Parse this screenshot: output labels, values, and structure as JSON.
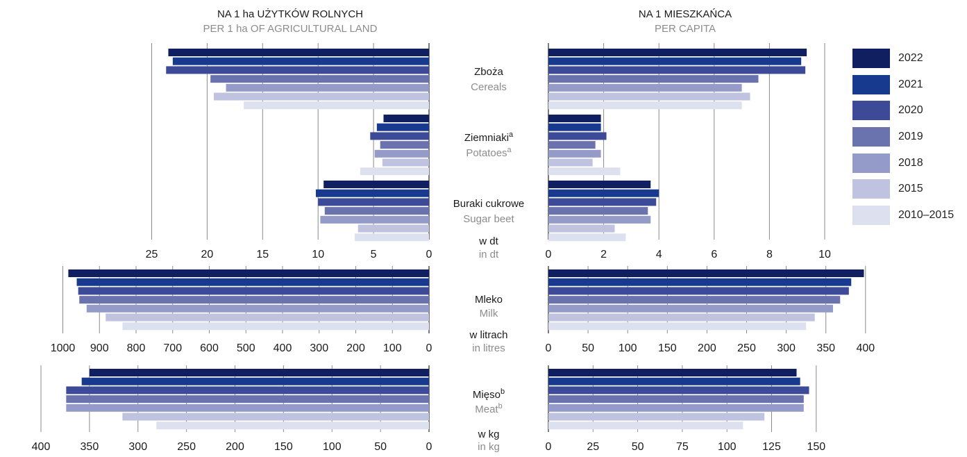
{
  "headers": {
    "left_pl": "NA 1 ha UŻYTKÓW ROLNYCH",
    "left_en": "PER 1 ha OF AGRICULTURAL LAND",
    "right_pl": "NA 1 MIESZKAŃCA",
    "right_en": "PER CAPITA"
  },
  "colors": {
    "pl_text": "#1a1a1a",
    "en_text": "#8c8c8c",
    "axis": "#333333",
    "grid": "#8a8a8a"
  },
  "legend": [
    {
      "label": "2022",
      "color": "#0f1f5f"
    },
    {
      "label": "2021",
      "color": "#173a8f"
    },
    {
      "label": "2020",
      "color": "#3d4a97"
    },
    {
      "label": "2019",
      "color": "#6a73ad"
    },
    {
      "label": "2018",
      "color": "#959bc8"
    },
    {
      "label": "2015",
      "color": "#c0c3df"
    },
    {
      "label": "2010–2015",
      "color": "#dde0ef"
    }
  ],
  "chart_data": [
    {
      "type": "bar",
      "orientation": "horizontal",
      "panel": "per 1 ha of agricultural land",
      "unit_pl": "w dt",
      "unit_en": "in dt",
      "xlim": [
        0,
        25
      ],
      "ticks": [
        25,
        20,
        15,
        10,
        5,
        0
      ],
      "series_labels": [
        "2022",
        "2021",
        "2020",
        "2019",
        "2018",
        "2015",
        "2010–2015"
      ],
      "categories": [
        {
          "pl": "Zboża",
          "en": "Cereals",
          "sup": "",
          "values": [
            23.5,
            23.1,
            23.7,
            19.7,
            18.3,
            19.4,
            16.7
          ]
        },
        {
          "pl": "Ziemniaki",
          "en": "Potatoes",
          "sup": "a",
          "values": [
            4.1,
            4.7,
            5.3,
            4.4,
            4.9,
            4.2,
            6.2
          ]
        },
        {
          "pl": "Buraki cukrowe",
          "en": "Sugar beet",
          "sup": "",
          "values": [
            9.5,
            10.2,
            10.0,
            9.4,
            9.8,
            6.4,
            6.7
          ]
        }
      ]
    },
    {
      "type": "bar",
      "orientation": "horizontal",
      "panel": "per capita",
      "unit_pl": "w dt",
      "unit_en": "in dt",
      "xlim": [
        0,
        10
      ],
      "ticks": [
        0,
        2,
        4,
        6,
        8,
        10
      ],
      "series_labels": [
        "2022",
        "2021",
        "2020",
        "2019",
        "2018",
        "2015",
        "2010–2015"
      ],
      "categories": [
        {
          "pl": "Zboża",
          "en": "Cereals",
          "sup": "",
          "values": [
            9.35,
            9.15,
            9.3,
            7.6,
            7.0,
            7.3,
            7.0
          ]
        },
        {
          "pl": "Ziemniaki",
          "en": "Potatoes",
          "sup": "a",
          "values": [
            1.9,
            1.9,
            2.1,
            1.7,
            1.9,
            1.6,
            2.6
          ]
        },
        {
          "pl": "Buraki cukrowe",
          "en": "Sugar beet",
          "sup": "",
          "values": [
            3.7,
            4.0,
            3.9,
            3.6,
            3.7,
            2.4,
            2.8
          ]
        }
      ]
    },
    {
      "type": "bar",
      "orientation": "horizontal",
      "panel": "per 1 ha of agricultural land",
      "unit_pl": "w litrach",
      "unit_en": "in litres",
      "xlim": [
        0,
        1000
      ],
      "ticks": [
        1000,
        900,
        800,
        700,
        600,
        500,
        400,
        300,
        200,
        100,
        0
      ],
      "series_labels": [
        "2022",
        "2021",
        "2020",
        "2019",
        "2018",
        "2015",
        "2010–2015"
      ],
      "categories": [
        {
          "pl": "Mleko",
          "en": "Milk",
          "sup": "",
          "values": [
            985,
            962,
            958,
            955,
            935,
            883,
            837
          ]
        }
      ]
    },
    {
      "type": "bar",
      "orientation": "horizontal",
      "panel": "per capita",
      "unit_pl": "w litrach",
      "unit_en": "in litres",
      "xlim": [
        0,
        400
      ],
      "ticks": [
        0,
        50,
        100,
        150,
        200,
        250,
        300,
        350,
        400
      ],
      "series_labels": [
        "2022",
        "2021",
        "2020",
        "2019",
        "2018",
        "2015",
        "2010–2015"
      ],
      "categories": [
        {
          "pl": "Mleko",
          "en": "Milk",
          "sup": "",
          "values": [
            398,
            382,
            379,
            368,
            359,
            336,
            325
          ]
        }
      ]
    },
    {
      "type": "bar",
      "orientation": "horizontal",
      "panel": "per 1 ha of agricultural land",
      "unit_pl": "w kg",
      "unit_en": "in kg",
      "xlim": [
        0,
        400
      ],
      "ticks": [
        400,
        350,
        300,
        250,
        200,
        150,
        100,
        50,
        0
      ],
      "series_labels": [
        "2022",
        "2021",
        "2020",
        "2019",
        "2018",
        "2015",
        "2010–2015"
      ],
      "categories": [
        {
          "pl": "Mięso",
          "en": "Meat",
          "sup": "b",
          "values": [
            350,
            358,
            374,
            374,
            374,
            316,
            281
          ]
        }
      ]
    },
    {
      "type": "bar",
      "orientation": "horizontal",
      "panel": "per capita",
      "unit_pl": "w kg",
      "unit_en": "in kg",
      "xlim": [
        0,
        150
      ],
      "ticks": [
        0,
        25,
        50,
        75,
        100,
        125,
        150
      ],
      "series_labels": [
        "2022",
        "2021",
        "2020",
        "2019",
        "2018",
        "2015",
        "2010–2015"
      ],
      "categories": [
        {
          "pl": "Mięso",
          "en": "Meat",
          "sup": "b",
          "values": [
            139,
            141,
            146,
            143,
            143,
            121,
            109
          ]
        }
      ]
    }
  ]
}
